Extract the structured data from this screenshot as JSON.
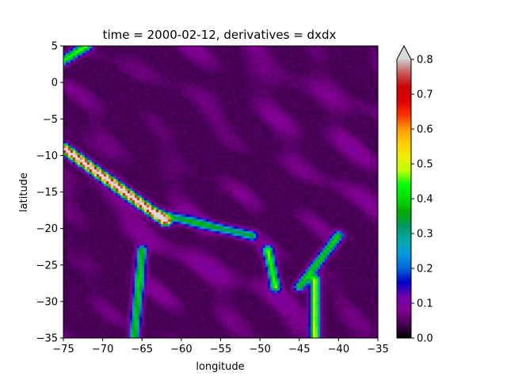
{
  "chart_data": {
    "type": "heatmap",
    "title": "time = 2000-02-12, derivatives = dxdx",
    "xlabel": "longitude",
    "ylabel": "latitude",
    "xlim": [
      -75,
      -35
    ],
    "ylim": [
      -35,
      5
    ],
    "xticks": [
      -75,
      -70,
      -65,
      -60,
      -55,
      -50,
      -45,
      -40,
      -35
    ],
    "yticks": [
      5,
      0,
      -5,
      -10,
      -15,
      -20,
      -25,
      -30,
      -35
    ],
    "colorbar": {
      "vmin": 0.0,
      "vmax": 0.8,
      "extend": "max",
      "ticks": [
        0.0,
        0.1,
        0.2,
        0.3,
        0.4,
        0.5,
        0.6,
        0.7,
        0.8
      ],
      "tick_labels": [
        "0.0",
        "0.1",
        "0.2",
        "0.3",
        "0.4",
        "0.5",
        "0.6",
        "0.7",
        "0.8"
      ],
      "colormap": "nipy_spectral",
      "over_color": "#d9d9d9"
    },
    "features": [
      {
        "kind": "ridge",
        "from": [
          -75,
          -9
        ],
        "to": [
          -62,
          -19
        ],
        "value": 0.85
      },
      {
        "kind": "ridge",
        "from": [
          -63,
          -18
        ],
        "to": [
          -51,
          -21
        ],
        "value": 0.3
      },
      {
        "kind": "ridge",
        "from": [
          -65,
          -23
        ],
        "to": [
          -66,
          -35
        ],
        "value": 0.35
      },
      {
        "kind": "ridge",
        "from": [
          -43,
          -27
        ],
        "to": [
          -43,
          -35
        ],
        "value": 0.45
      },
      {
        "kind": "ridge",
        "from": [
          -45,
          -28
        ],
        "to": [
          -40,
          -21
        ],
        "value": 0.35
      },
      {
        "kind": "ridge",
        "from": [
          -49,
          -23
        ],
        "to": [
          -48,
          -28
        ],
        "value": 0.4
      },
      {
        "kind": "ridge",
        "from": [
          -75,
          3
        ],
        "to": [
          -72,
          5
        ],
        "value": 0.4
      }
    ]
  }
}
